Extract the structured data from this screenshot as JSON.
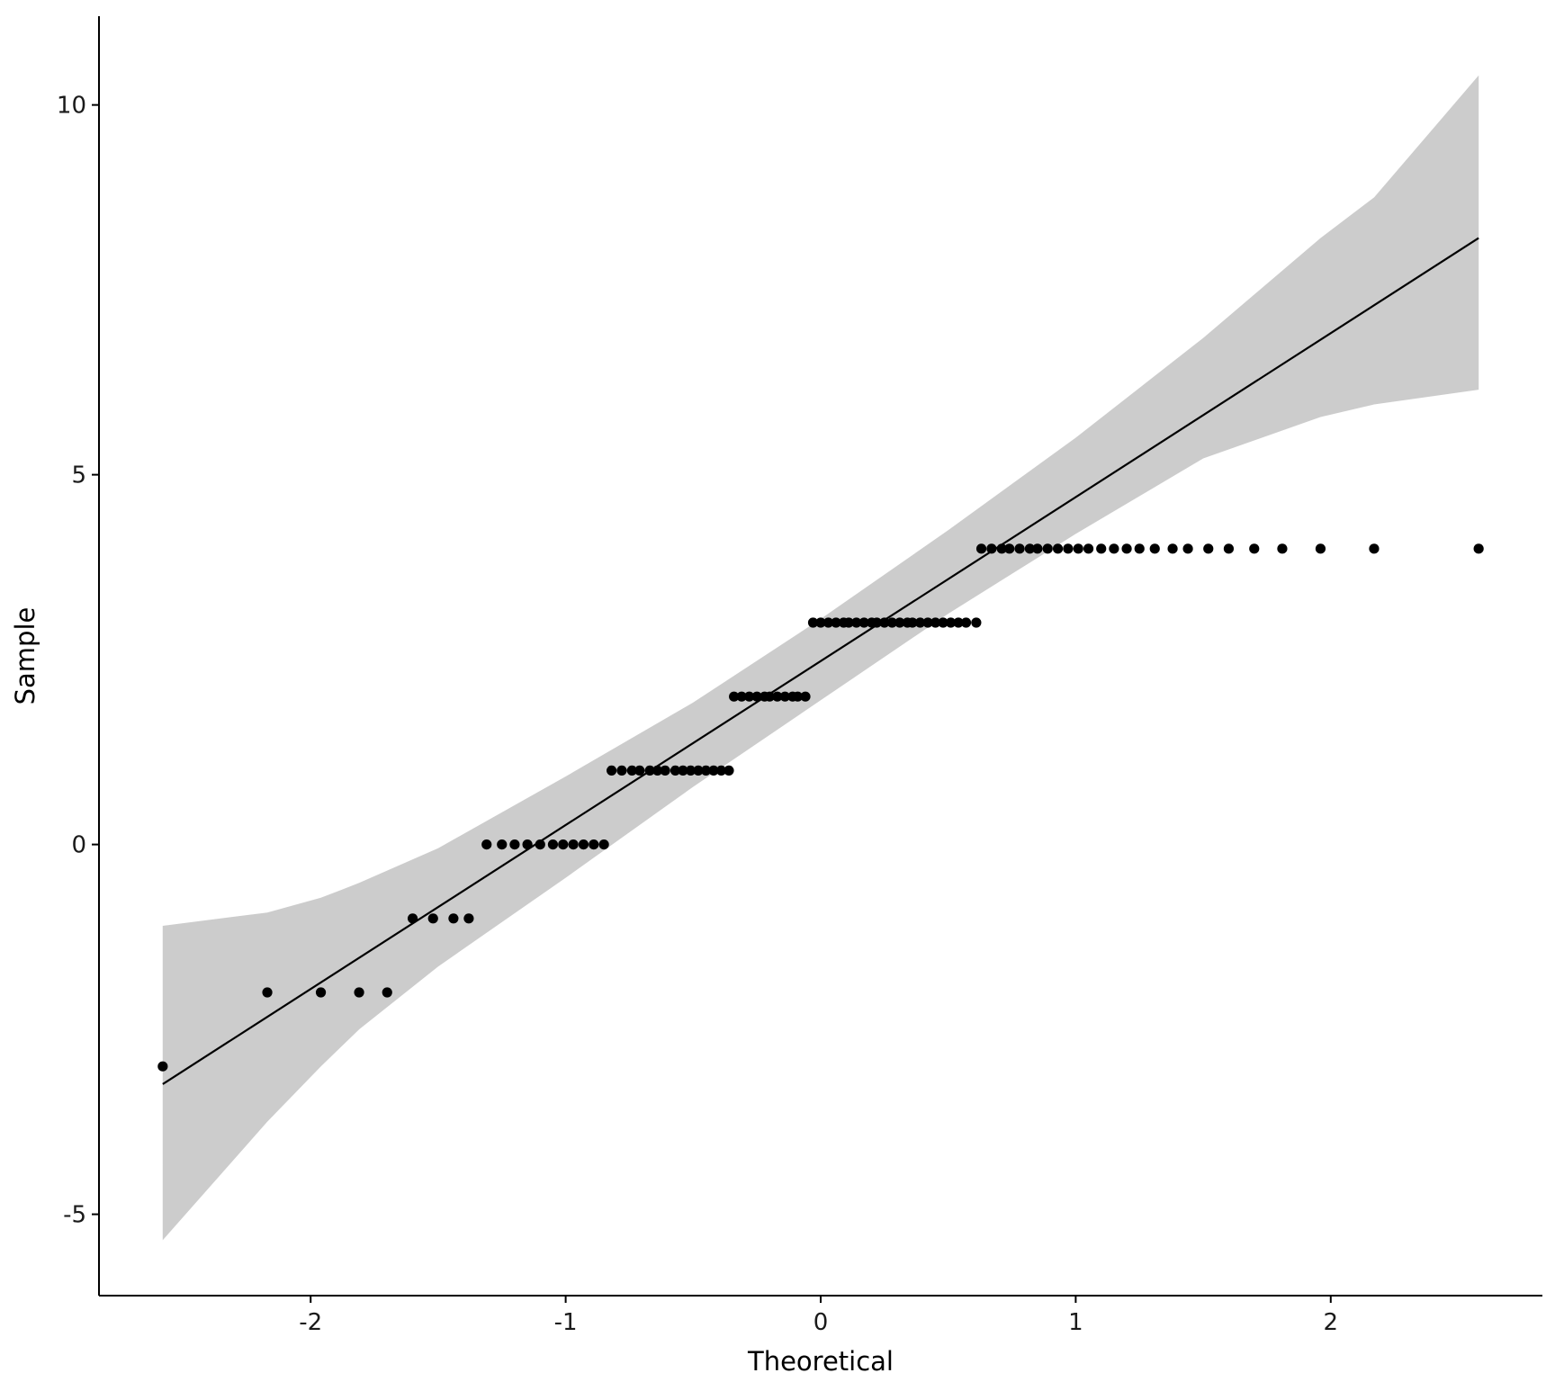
{
  "chart_data": {
    "type": "scatter",
    "subtype": "qq-plot",
    "xlabel": "Theoretical",
    "ylabel": "Sample",
    "xlim": [
      -2.83,
      2.83
    ],
    "ylim": [
      -6.1,
      11.2
    ],
    "x_ticks": [
      {
        "value": -2,
        "label": "-2"
      },
      {
        "value": -1,
        "label": "-1"
      },
      {
        "value": 0,
        "label": "0"
      },
      {
        "value": 1,
        "label": "1"
      },
      {
        "value": 2,
        "label": "2"
      }
    ],
    "y_ticks": [
      {
        "value": -5,
        "label": "-5"
      },
      {
        "value": 0,
        "label": "0"
      },
      {
        "value": 5,
        "label": "5"
      },
      {
        "value": 10,
        "label": "10"
      }
    ],
    "grid": false,
    "points": [
      {
        "sample": -3,
        "theoretical": [
          -2.58
        ]
      },
      {
        "sample": -2,
        "theoretical": [
          -2.17,
          -1.96,
          -1.81,
          -1.7
        ]
      },
      {
        "sample": -1,
        "theoretical": [
          -1.6,
          -1.52,
          -1.44,
          -1.38
        ]
      },
      {
        "sample": 0,
        "theoretical": [
          -1.31,
          -1.25,
          -1.2,
          -1.15,
          -1.1,
          -1.05,
          -1.01,
          -0.97,
          -0.93,
          -0.89,
          -0.85
        ]
      },
      {
        "sample": 1,
        "theoretical": [
          -0.82,
          -0.78,
          -0.74,
          -0.71,
          -0.67,
          -0.64,
          -0.61,
          -0.57,
          -0.54,
          -0.51,
          -0.48,
          -0.45,
          -0.42,
          -0.39,
          -0.36
        ]
      },
      {
        "sample": 2,
        "theoretical": [
          -0.34,
          -0.31,
          -0.28,
          -0.25,
          -0.22,
          -0.2,
          -0.17,
          -0.14,
          -0.11,
          -0.09,
          -0.06
        ]
      },
      {
        "sample": 3,
        "theoretical": [
          -0.03,
          0.0,
          0.03,
          0.06,
          0.09,
          0.11,
          0.14,
          0.17,
          0.2,
          0.22,
          0.25,
          0.28,
          0.31,
          0.34,
          0.36,
          0.39,
          0.42,
          0.45,
          0.48,
          0.51,
          0.54,
          0.57,
          0.61
        ]
      },
      {
        "sample": 4,
        "theoretical": [
          0.63,
          0.67,
          0.71,
          0.74,
          0.78,
          0.82,
          0.85,
          0.89,
          0.93,
          0.97,
          1.01,
          1.05,
          1.1,
          1.15,
          1.2,
          1.25,
          1.31,
          1.38,
          1.44,
          1.52,
          1.6,
          1.7,
          1.81,
          1.96,
          2.17,
          2.58
        ]
      }
    ],
    "reference_line": {
      "x": [
        -2.58,
        2.58
      ],
      "y": [
        -3.24,
        8.2
      ]
    },
    "confidence_band": {
      "x": [
        -2.58,
        -2.17,
        -1.96,
        -1.81,
        -1.5,
        -1.0,
        -0.5,
        0.0,
        0.5,
        1.0,
        1.5,
        1.96,
        2.17,
        2.58
      ],
      "upper": [
        -1.1,
        -0.92,
        -0.72,
        -0.52,
        -0.05,
        0.92,
        1.92,
        3.05,
        4.25,
        5.5,
        6.85,
        8.2,
        8.75,
        10.4
      ],
      "lower": [
        -5.35,
        -3.75,
        -3.0,
        -2.5,
        -1.65,
        -0.45,
        0.78,
        1.95,
        3.12,
        4.2,
        5.22,
        5.78,
        5.95,
        6.15
      ]
    },
    "colors": {
      "points": "#000000",
      "line": "#000000",
      "band": "#cccccc",
      "axis": "#000000",
      "background": "#ffffff"
    }
  }
}
